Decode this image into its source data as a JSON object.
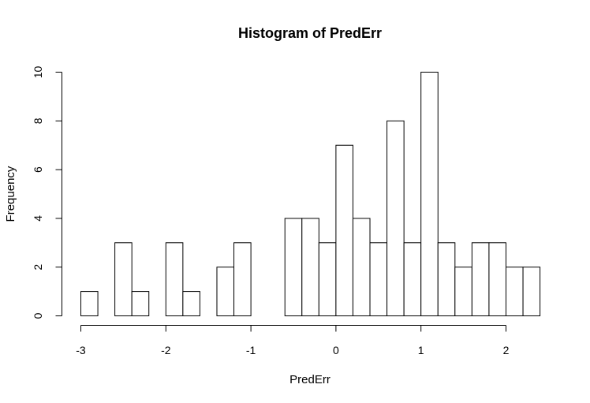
{
  "chart_data": {
    "type": "bar",
    "title": "Histogram of PredErr",
    "xlabel": "PredErr",
    "ylabel": "Frequency",
    "bin_width": 0.2,
    "xlim": [
      -3.0,
      2.4
    ],
    "ylim": [
      0,
      10
    ],
    "x_ticks": [
      -3,
      -2,
      -1,
      0,
      1,
      2
    ],
    "y_ticks": [
      0,
      2,
      4,
      6,
      8,
      10
    ],
    "bins": [
      {
        "start": -3.0,
        "end": -2.8,
        "count": 1
      },
      {
        "start": -2.8,
        "end": -2.6,
        "count": 0
      },
      {
        "start": -2.6,
        "end": -2.4,
        "count": 3
      },
      {
        "start": -2.4,
        "end": -2.2,
        "count": 1
      },
      {
        "start": -2.2,
        "end": -2.0,
        "count": 0
      },
      {
        "start": -2.0,
        "end": -1.8,
        "count": 3
      },
      {
        "start": -1.8,
        "end": -1.6,
        "count": 1
      },
      {
        "start": -1.6,
        "end": -1.4,
        "count": 0
      },
      {
        "start": -1.4,
        "end": -1.2,
        "count": 2
      },
      {
        "start": -1.2,
        "end": -1.0,
        "count": 3
      },
      {
        "start": -1.0,
        "end": -0.8,
        "count": 0
      },
      {
        "start": -0.8,
        "end": -0.6,
        "count": 0
      },
      {
        "start": -0.6,
        "end": -0.4,
        "count": 4
      },
      {
        "start": -0.4,
        "end": -0.2,
        "count": 4
      },
      {
        "start": -0.2,
        "end": 0.0,
        "count": 3
      },
      {
        "start": 0.0,
        "end": 0.2,
        "count": 7
      },
      {
        "start": 0.2,
        "end": 0.4,
        "count": 4
      },
      {
        "start": 0.4,
        "end": 0.6,
        "count": 3
      },
      {
        "start": 0.6,
        "end": 0.8,
        "count": 8
      },
      {
        "start": 0.8,
        "end": 1.0,
        "count": 3
      },
      {
        "start": 1.0,
        "end": 1.2,
        "count": 10
      },
      {
        "start": 1.2,
        "end": 1.4,
        "count": 3
      },
      {
        "start": 1.4,
        "end": 1.6,
        "count": 2
      },
      {
        "start": 1.6,
        "end": 1.8,
        "count": 3
      },
      {
        "start": 1.8,
        "end": 2.0,
        "count": 3
      },
      {
        "start": 2.0,
        "end": 2.2,
        "count": 2
      },
      {
        "start": 2.2,
        "end": 2.4,
        "count": 2
      }
    ]
  }
}
